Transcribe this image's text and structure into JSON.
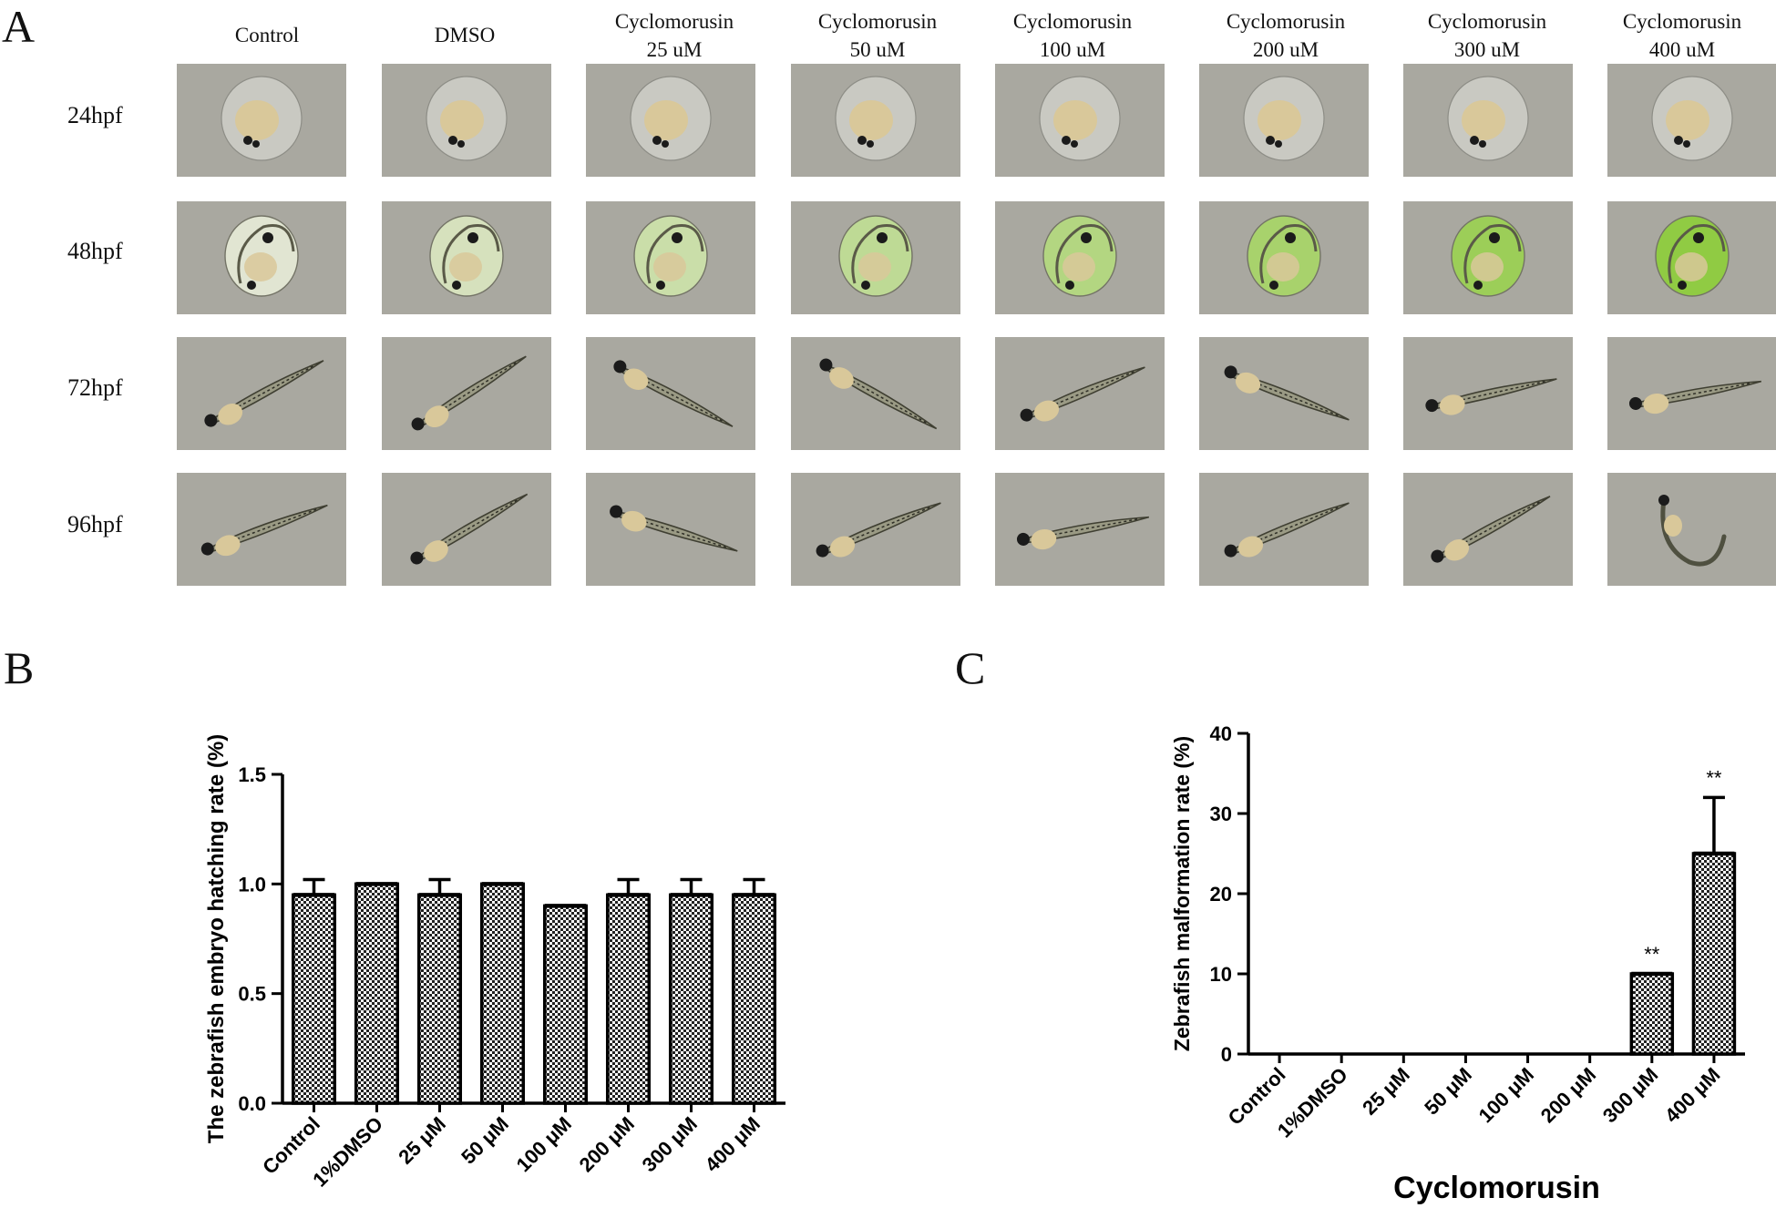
{
  "figure": {
    "panel_labels": [
      "A",
      "B",
      "C"
    ],
    "columns": [
      {
        "line1": "Control",
        "line2": ""
      },
      {
        "line1": "DMSO",
        "line2": ""
      },
      {
        "line1": "Cyclomorusin",
        "line2": "25 uM"
      },
      {
        "line1": "Cyclomorusin",
        "line2": "50 uM"
      },
      {
        "line1": "Cyclomorusin",
        "line2": "100 uM"
      },
      {
        "line1": "Cyclomorusin",
        "line2": "200 uM"
      },
      {
        "line1": "Cyclomorusin",
        "line2": "300 uM"
      },
      {
        "line1": "Cyclomorusin",
        "line2": "400 uM"
      }
    ],
    "rows": [
      "24hpf",
      "48hpf",
      "72hpf",
      "96hpf"
    ],
    "colors": {
      "photo_background": "#a9a8a0",
      "yolk": "#d9c89a",
      "egg_tint_low": "#e8ecd8",
      "egg_tint_high": "#8ecf3a",
      "eye": "#1b1b1b",
      "bar_fill": "#bbbbbb",
      "axis": "#000000"
    }
  },
  "chart_data": [
    {
      "panel": "B",
      "type": "bar",
      "title": "",
      "ylabel": "The zebrafish embryo hatching rate (%)",
      "xlabel": "",
      "categories": [
        "Control",
        "1%DMSO",
        "25 μM",
        "50 μM",
        "100 μM",
        "200 μM",
        "300 μM",
        "400 μM"
      ],
      "values": [
        0.95,
        1.0,
        0.95,
        1.0,
        0.9,
        0.95,
        0.95,
        0.95
      ],
      "errors": [
        0.07,
        0.0,
        0.07,
        0.0,
        0.0,
        0.07,
        0.07,
        0.07
      ],
      "annotations": [
        "",
        "",
        "",
        "",
        "",
        "",
        "",
        ""
      ],
      "ylim": [
        0,
        1.5
      ],
      "yticks": [
        "0.0",
        "0.5",
        "1.0",
        "1.5"
      ],
      "grid": false
    },
    {
      "panel": "C",
      "type": "bar",
      "title": "",
      "ylabel": "Zebrafish malformation rate (%)",
      "xlabel": "Cyclomorusin",
      "categories": [
        "Control",
        "1%DMSO",
        "25 μM",
        "50 μM",
        "100 μM",
        "200 μM",
        "300 μM",
        "400 μM"
      ],
      "values": [
        0,
        0,
        0,
        0,
        0,
        0,
        10,
        25
      ],
      "errors": [
        0,
        0,
        0,
        0,
        0,
        0,
        0,
        7
      ],
      "annotations": [
        "",
        "",
        "",
        "",
        "",
        "",
        "**",
        "**"
      ],
      "ylim": [
        0,
        40
      ],
      "yticks": [
        "0",
        "10",
        "20",
        "30",
        "40"
      ],
      "grid": false
    }
  ]
}
